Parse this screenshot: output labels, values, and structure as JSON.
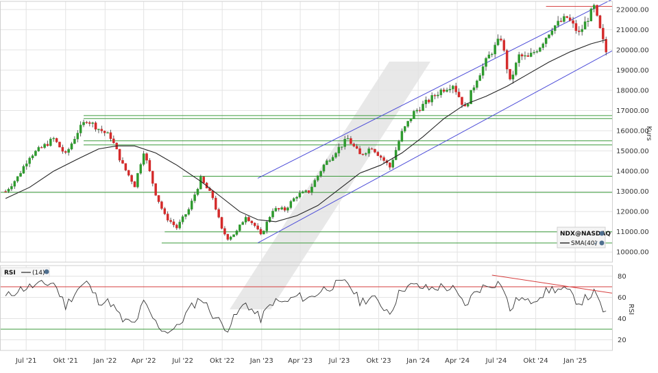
{
  "chart_data": [
    {
      "type": "candlestick",
      "instrument": "NDX@NASDAQ",
      "ylabel": "Kurs",
      "ylim": [
        9500,
        22400
      ],
      "y_ticks": [
        "10000.00",
        "11000.00",
        "12000.00",
        "13000.00",
        "14000.00",
        "15000.00",
        "16000.00",
        "17000.00",
        "18000.00",
        "19000.00",
        "20000.00",
        "21000.00",
        "22000.00"
      ],
      "x_ticks": [
        "Jul '21",
        "Okt '21",
        "Jan '22",
        "Apr '22",
        "Jul '22",
        "Okt '22",
        "Jan '23",
        "Apr '23",
        "Jul '23",
        "Okt '23",
        "Jan '24",
        "Apr '24",
        "Jul '24",
        "Okt '24",
        "Jan '25"
      ],
      "grid": true,
      "legend": {
        "instrument_label": "NDX@NASDAQ",
        "sma_label": "SMA(40)",
        "placement": "bottom-right"
      },
      "close_path": [
        [
          "2021-05-14",
          13000
        ],
        [
          "2021-06-11",
          13700
        ],
        [
          "2021-07-09",
          14750
        ],
        [
          "2021-08-06",
          15150
        ],
        [
          "2021-09-03",
          15600
        ],
        [
          "2021-10-01",
          14800
        ],
        [
          "2021-10-29",
          15950
        ],
        [
          "2021-11-19",
          16550
        ],
        [
          "2021-12-17",
          16100
        ],
        [
          "2022-01-14",
          15700
        ],
        [
          "2022-02-11",
          14300
        ],
        [
          "2022-03-11",
          13300
        ],
        [
          "2022-04-01",
          15000
        ],
        [
          "2022-04-29",
          12900
        ],
        [
          "2022-05-20",
          11800
        ],
        [
          "2022-06-17",
          11200
        ],
        [
          "2022-07-15",
          12100
        ],
        [
          "2022-08-12",
          13600
        ],
        [
          "2022-09-09",
          12700
        ],
        [
          "2022-09-30",
          11100
        ],
        [
          "2022-10-14",
          10700
        ],
        [
          "2022-11-04",
          11000
        ],
        [
          "2022-11-25",
          11800
        ],
        [
          "2022-12-16",
          11300
        ],
        [
          "2022-12-30",
          10800
        ],
        [
          "2023-01-27",
          12100
        ],
        [
          "2023-02-24",
          12100
        ],
        [
          "2023-03-24",
          12800
        ],
        [
          "2023-04-21",
          13000
        ],
        [
          "2023-05-26",
          14300
        ],
        [
          "2023-06-23",
          15000
        ],
        [
          "2023-07-21",
          15600
        ],
        [
          "2023-08-18",
          14800
        ],
        [
          "2023-09-15",
          15200
        ],
        [
          "2023-10-27",
          14200
        ],
        [
          "2023-11-24",
          15900
        ],
        [
          "2023-12-22",
          16900
        ],
        [
          "2024-01-26",
          17500
        ],
        [
          "2024-02-23",
          18000
        ],
        [
          "2024-03-22",
          18300
        ],
        [
          "2024-04-19",
          17100
        ],
        [
          "2024-05-17",
          18600
        ],
        [
          "2024-06-14",
          19700
        ],
        [
          "2024-07-12",
          20600
        ],
        [
          "2024-08-02",
          18400
        ],
        [
          "2024-08-23",
          19700
        ],
        [
          "2024-09-13",
          19600
        ],
        [
          "2024-10-11",
          20200
        ],
        [
          "2024-11-08",
          21100
        ],
        [
          "2024-12-13",
          21600
        ],
        [
          "2025-01-10",
          20800
        ],
        [
          "2025-02-14",
          22100
        ],
        [
          "2025-03-07",
          20400
        ],
        [
          "2025-03-14",
          19900
        ]
      ],
      "sma_path": [
        [
          "2021-05-14",
          12650
        ],
        [
          "2021-07-09",
          13200
        ],
        [
          "2021-09-03",
          14000
        ],
        [
          "2021-10-29",
          14600
        ],
        [
          "2021-12-17",
          15100
        ],
        [
          "2022-01-28",
          15250
        ],
        [
          "2022-03-11",
          15250
        ],
        [
          "2022-04-29",
          14900
        ],
        [
          "2022-06-17",
          14300
        ],
        [
          "2022-08-12",
          13500
        ],
        [
          "2022-09-30",
          12700
        ],
        [
          "2022-11-11",
          12000
        ],
        [
          "2022-12-23",
          11600
        ],
        [
          "2023-02-03",
          11500
        ],
        [
          "2023-03-24",
          11800
        ],
        [
          "2023-05-12",
          12300
        ],
        [
          "2023-06-30",
          13100
        ],
        [
          "2023-08-18",
          13900
        ],
        [
          "2023-10-06",
          14300
        ],
        [
          "2023-11-24",
          14900
        ],
        [
          "2024-01-12",
          15700
        ],
        [
          "2024-03-01",
          16600
        ],
        [
          "2024-04-19",
          17300
        ],
        [
          "2024-06-07",
          17700
        ],
        [
          "2024-07-26",
          18200
        ],
        [
          "2024-09-13",
          18800
        ],
        [
          "2024-11-01",
          19400
        ],
        [
          "2024-12-20",
          19900
        ],
        [
          "2025-02-07",
          20300
        ],
        [
          "2025-03-14",
          20500
        ]
      ],
      "horizontal_levels": [
        {
          "y": 16750,
          "from": "2021-11-12",
          "to": "2025-03-28"
        },
        {
          "y": 16600,
          "from": "2021-11-12",
          "to": "2025-03-28"
        },
        {
          "y": 15500,
          "from": "2021-11-12",
          "to": "2025-03-28"
        },
        {
          "y": 15300,
          "from": "2021-11-12",
          "to": "2025-03-28"
        },
        {
          "y": 13750,
          "from": "2022-07-01",
          "to": "2025-03-28"
        },
        {
          "y": 12950,
          "from": "2021-05-01",
          "to": "2025-03-28"
        },
        {
          "y": 11000,
          "from": "2022-05-20",
          "to": "2025-03-28"
        },
        {
          "y": 10450,
          "from": "2022-05-13",
          "to": "2025-03-28"
        }
      ],
      "resistance_line": {
        "y": 22150,
        "from": "2024-10-25",
        "to": "2025-03-28"
      },
      "trend_channel": [
        {
          "from": [
            "2022-12-23",
            13650
          ],
          "to": [
            "2025-03-28",
            22500
          ]
        },
        {
          "from": [
            "2022-12-23",
            10450
          ],
          "to": [
            "2025-03-28",
            19950
          ]
        }
      ]
    },
    {
      "type": "line",
      "indicator": "RSI",
      "legend": {
        "name_label": "RSI",
        "period_label": "(14)"
      },
      "ylabel": "RSI",
      "ylim": [
        10,
        90
      ],
      "y_ticks": [
        "20",
        "40",
        "60",
        "80"
      ],
      "reference_levels": [
        70,
        30
      ],
      "path": [
        [
          "2021-05-14",
          60
        ],
        [
          "2021-06-11",
          67
        ],
        [
          "2021-07-09",
          70
        ],
        [
          "2021-08-06",
          72
        ],
        [
          "2021-09-03",
          74
        ],
        [
          "2021-10-01",
          52
        ],
        [
          "2021-10-29",
          68
        ],
        [
          "2021-11-19",
          74
        ],
        [
          "2021-12-17",
          57
        ],
        [
          "2022-01-14",
          55
        ],
        [
          "2022-02-11",
          38
        ],
        [
          "2022-03-11",
          35
        ],
        [
          "2022-04-01",
          55
        ],
        [
          "2022-04-29",
          36
        ],
        [
          "2022-05-20",
          28
        ],
        [
          "2022-06-17",
          31
        ],
        [
          "2022-07-15",
          48
        ],
        [
          "2022-08-12",
          60
        ],
        [
          "2022-09-09",
          44
        ],
        [
          "2022-09-30",
          35
        ],
        [
          "2022-10-14",
          31
        ],
        [
          "2022-11-04",
          44
        ],
        [
          "2022-11-25",
          55
        ],
        [
          "2022-12-16",
          45
        ],
        [
          "2022-12-30",
          40
        ],
        [
          "2023-01-27",
          56
        ],
        [
          "2023-02-24",
          55
        ],
        [
          "2023-03-24",
          61
        ],
        [
          "2023-04-21",
          59
        ],
        [
          "2023-05-26",
          68
        ],
        [
          "2023-06-23",
          72
        ],
        [
          "2023-07-21",
          74
        ],
        [
          "2023-08-18",
          56
        ],
        [
          "2023-09-15",
          60
        ],
        [
          "2023-10-27",
          46
        ],
        [
          "2023-11-24",
          69
        ],
        [
          "2023-12-22",
          71
        ],
        [
          "2024-01-26",
          68
        ],
        [
          "2024-02-23",
          70
        ],
        [
          "2024-03-22",
          68
        ],
        [
          "2024-04-19",
          52
        ],
        [
          "2024-05-17",
          67
        ],
        [
          "2024-06-14",
          72
        ],
        [
          "2024-07-12",
          74
        ],
        [
          "2024-08-02",
          48
        ],
        [
          "2024-08-23",
          60
        ],
        [
          "2024-09-13",
          55
        ],
        [
          "2024-10-11",
          62
        ],
        [
          "2024-11-08",
          68
        ],
        [
          "2024-12-13",
          66
        ],
        [
          "2025-01-10",
          55
        ],
        [
          "2025-02-14",
          64
        ],
        [
          "2025-03-07",
          48
        ],
        [
          "2025-03-14",
          45
        ]
      ],
      "divergence_line": {
        "from": [
          "2024-06-21",
          81
        ],
        "to": [
          "2025-03-28",
          64
        ]
      }
    }
  ],
  "colors": {
    "up": "#2e9a2e",
    "down": "#d42a2a",
    "grid": "#e3e3e3",
    "level": "#3a9a3a",
    "channel": "#4b4bd8",
    "resistance": "#d63b3b",
    "sma": "#222222",
    "rsi": "#333333",
    "watermark": "#d8d8d8"
  }
}
